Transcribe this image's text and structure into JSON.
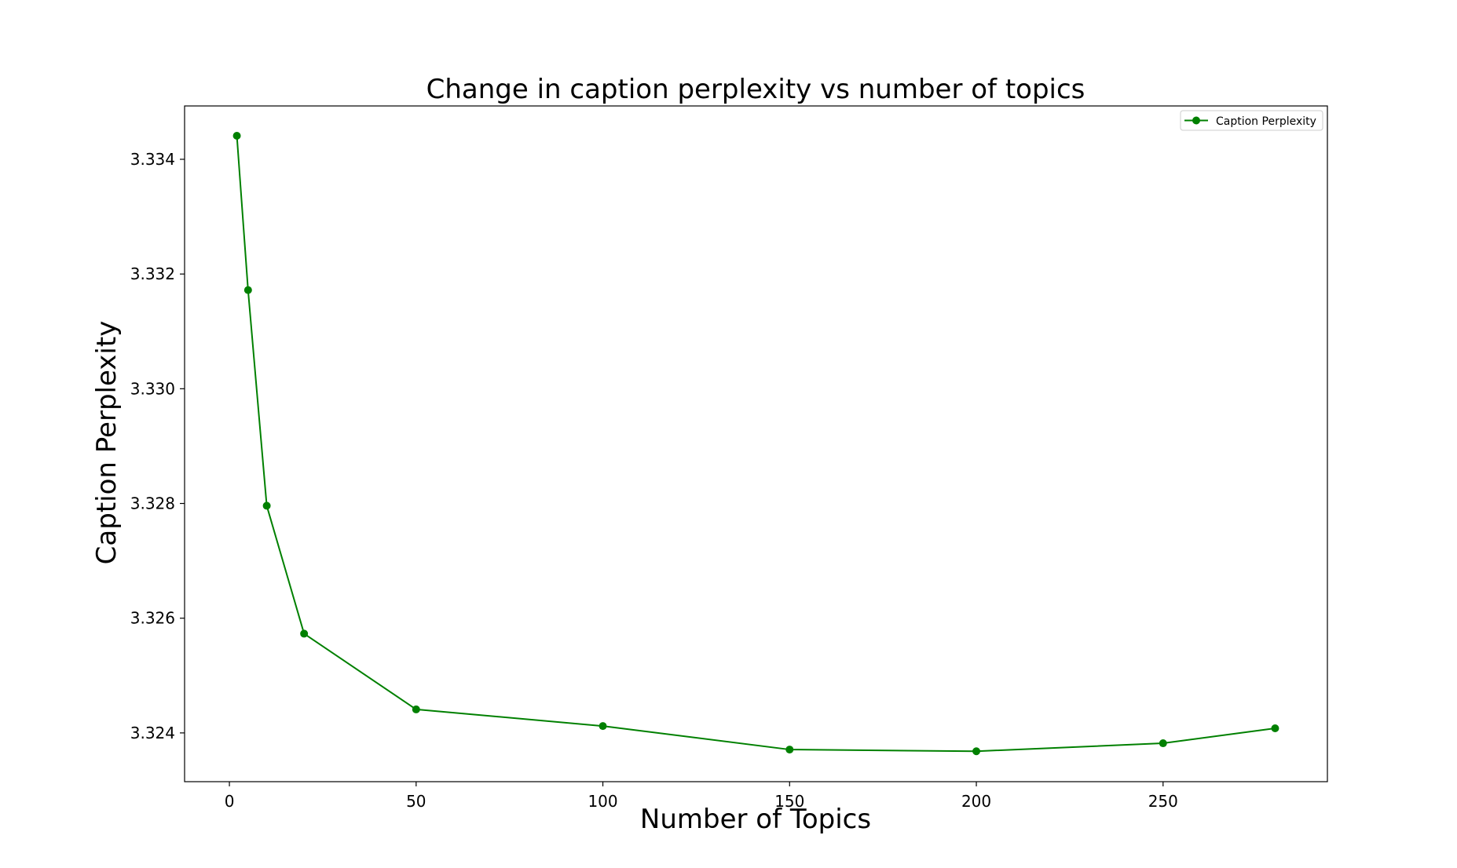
{
  "chart_data": {
    "type": "line",
    "title": "Change in caption perplexity vs number of topics",
    "xlabel": "Number of Topics",
    "ylabel": "Caption Perplexity",
    "x": [
      2,
      5,
      10,
      20,
      50,
      100,
      150,
      200,
      250,
      280
    ],
    "series": [
      {
        "name": "Caption Perplexity",
        "color": "#008000",
        "marker": "circle",
        "values": [
          3.33441,
          3.33172,
          3.32796,
          3.32573,
          3.32441,
          3.32412,
          3.32371,
          3.32368,
          3.32382,
          3.32408
        ]
      }
    ],
    "xlim": [
      -12,
      294
    ],
    "ylim": [
      3.32315,
      3.33493
    ],
    "xticks": [
      {
        "value": 0,
        "label": "0"
      },
      {
        "value": 50,
        "label": "50"
      },
      {
        "value": 100,
        "label": "100"
      },
      {
        "value": 150,
        "label": "150"
      },
      {
        "value": 200,
        "label": "200"
      },
      {
        "value": 250,
        "label": "250"
      }
    ],
    "yticks": [
      {
        "value": 3.324,
        "label": "3.324"
      },
      {
        "value": 3.326,
        "label": "3.326"
      },
      {
        "value": 3.328,
        "label": "3.328"
      },
      {
        "value": 3.33,
        "label": "3.330"
      },
      {
        "value": 3.332,
        "label": "3.332"
      },
      {
        "value": 3.334,
        "label": "3.334"
      }
    ],
    "grid": false,
    "legend_position": "top-right"
  }
}
